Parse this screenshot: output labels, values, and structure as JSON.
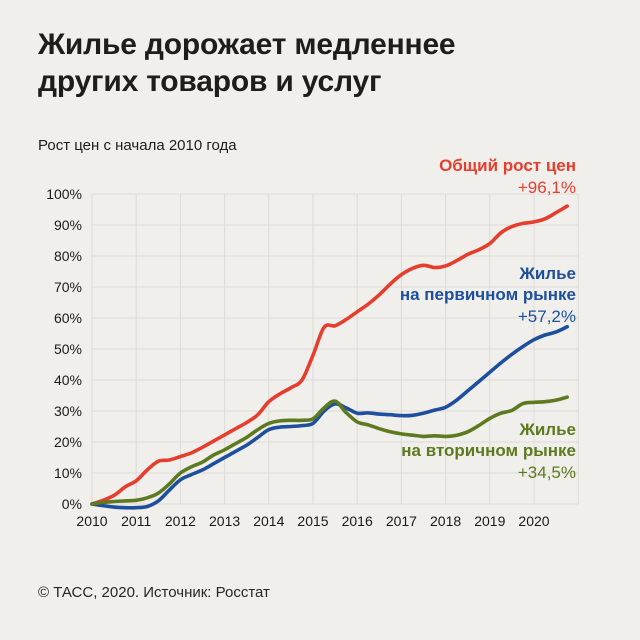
{
  "title_line1": "Жилье дорожает медленнее",
  "title_line2": "других товаров и услуг",
  "subtitle": "Рост цен с начала 2010 года",
  "footer": "© ТАСС, 2020. Источник: Росстат",
  "colors": {
    "red": "#e63d2d",
    "blue": "#1d4f9c",
    "green": "#5e7a1f",
    "background": "#f0efec",
    "grid": "#dcdbd8",
    "text": "#1d1d1b"
  },
  "chart_data": {
    "type": "line",
    "title": "Рост цен с начала 2010 года",
    "xlabel": "",
    "ylabel": "",
    "ylim": [
      0,
      100
    ],
    "xlim": [
      2010,
      2021
    ],
    "grid": true,
    "y_ticks": [
      "100%",
      "90%",
      "80%",
      "70%",
      "60%",
      "50%",
      "40%",
      "30%",
      "20%",
      "10%",
      "0%"
    ],
    "x_ticks": [
      "2010",
      "2011",
      "2012",
      "2013",
      "2014",
      "2015",
      "2016",
      "2017",
      "2018",
      "2019",
      "2020"
    ],
    "x": [
      2010.0,
      2010.25,
      2010.5,
      2010.75,
      2011.0,
      2011.25,
      2011.5,
      2011.75,
      2012.0,
      2012.25,
      2012.5,
      2012.75,
      2013.0,
      2013.25,
      2013.5,
      2013.75,
      2014.0,
      2014.25,
      2014.5,
      2014.75,
      2015.0,
      2015.25,
      2015.5,
      2015.75,
      2016.0,
      2016.25,
      2016.5,
      2016.75,
      2017.0,
      2017.25,
      2017.5,
      2017.75,
      2018.0,
      2018.25,
      2018.5,
      2018.75,
      2019.0,
      2019.25,
      2019.5,
      2019.75,
      2020.0,
      2020.25,
      2020.5,
      2020.75
    ],
    "series": [
      {
        "name": "Общий рост цен",
        "label_lines": [
          "Общий рост цен"
        ],
        "value_label": "+96,1%",
        "final_value": 96.1,
        "color_key": "red",
        "values": [
          0,
          1.2,
          2.8,
          5.5,
          7.5,
          11,
          13.8,
          14.2,
          15.3,
          16.5,
          18.3,
          20.3,
          22.3,
          24.3,
          26.3,
          28.8,
          33,
          35.5,
          37.5,
          40,
          48,
          57,
          57.5,
          59.5,
          62,
          64.5,
          67.5,
          71,
          74,
          76,
          77,
          76.3,
          76.8,
          78.5,
          80.5,
          82,
          84,
          87.5,
          89.5,
          90.5,
          91,
          92,
          94,
          96.1
        ]
      },
      {
        "name": "Жилье на первичном рынке",
        "label_lines": [
          "Жилье",
          "на первичном рынке"
        ],
        "value_label": "+57,2%",
        "final_value": 57.2,
        "color_key": "blue",
        "values": [
          0,
          -0.5,
          -1,
          -1.2,
          -1.2,
          -0.8,
          1,
          4.5,
          7.8,
          9.5,
          11,
          13,
          15,
          17,
          19,
          21.5,
          24,
          24.8,
          25,
          25.3,
          26,
          30,
          32.3,
          31,
          29.3,
          29.4,
          29,
          28.8,
          28.5,
          28.6,
          29.3,
          30.3,
          31.2,
          33.5,
          36.5,
          39.5,
          42.5,
          45.5,
          48.3,
          50.8,
          53,
          54.5,
          55.5,
          57.2
        ]
      },
      {
        "name": "Жилье на вторичном рынке",
        "label_lines": [
          "Жилье",
          "на вторичном рынке"
        ],
        "value_label": "+34,5%",
        "final_value": 34.5,
        "color_key": "green",
        "values": [
          0,
          0.5,
          0.8,
          1,
          1.2,
          2,
          3.5,
          6.5,
          10,
          12,
          13.5,
          15.8,
          17.5,
          19.5,
          21.5,
          24,
          26,
          26.8,
          27,
          27,
          27.5,
          31,
          33.2,
          29.5,
          26.5,
          25.5,
          24.3,
          23.3,
          22.6,
          22.2,
          21.8,
          22,
          21.8,
          22.2,
          23.3,
          25.3,
          27.6,
          29.3,
          30.2,
          32.4,
          32.8,
          33,
          33.5,
          34.5
        ]
      }
    ],
    "legend_position": "annotations-right"
  }
}
